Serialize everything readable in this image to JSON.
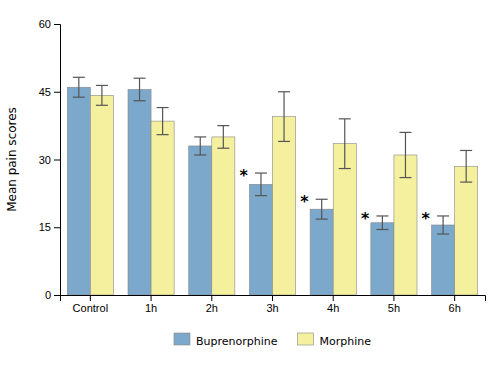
{
  "chart_data": {
    "type": "bar",
    "categories": [
      "Control",
      "1h",
      "2h",
      "3h",
      "4h",
      "5h",
      "6h"
    ],
    "series": [
      {
        "name": "Buprenorphine",
        "color": "#7BA8CB",
        "values": [
          46.0,
          45.5,
          33.0,
          24.5,
          19.0,
          16.0,
          15.5
        ],
        "errors": [
          2.2,
          2.5,
          2.0,
          2.5,
          2.2,
          1.5,
          2.0
        ]
      },
      {
        "name": "Morphine",
        "color": "#F5F09E",
        "values": [
          44.2,
          38.5,
          35.0,
          39.5,
          33.5,
          31.0,
          28.5
        ],
        "errors": [
          2.2,
          3.0,
          2.5,
          5.5,
          5.5,
          5.0,
          3.5
        ]
      }
    ],
    "annotations": [
      {
        "text": "*",
        "category": "3h",
        "series": "Buprenorphine"
      },
      {
        "text": "*",
        "category": "4h",
        "series": "Buprenorphine"
      },
      {
        "text": "*",
        "category": "5h",
        "series": "Buprenorphine"
      },
      {
        "text": "*",
        "category": "6h",
        "series": "Buprenorphine"
      }
    ],
    "ylabel": "Mean pain scores",
    "ylim": [
      0,
      60
    ],
    "yticks": [
      0,
      15,
      30,
      45,
      60
    ],
    "grid": false,
    "legend": "bottom"
  }
}
